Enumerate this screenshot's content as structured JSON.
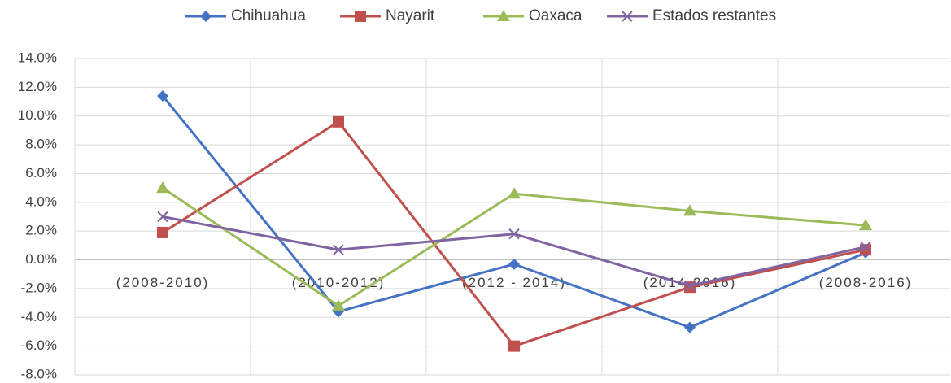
{
  "chart_data": {
    "type": "line",
    "categories": [
      "(2008-2010)",
      "(2010-2012)",
      "(2012 - 2014)",
      "(2014-2016)",
      "(2008-2016)"
    ],
    "series": [
      {
        "name": "Chihuahua",
        "color": "#4472c4",
        "marker": "diamond",
        "values": [
          11.4,
          -3.6,
          -0.3,
          -4.7,
          0.5
        ]
      },
      {
        "name": "Nayarit",
        "color": "#c0504d",
        "marker": "square",
        "values": [
          1.9,
          9.6,
          -6.0,
          -1.9,
          0.7
        ]
      },
      {
        "name": "Oaxaca",
        "color": "#9bbb59",
        "marker": "triangle",
        "values": [
          5.0,
          -3.2,
          4.6,
          3.4,
          2.4
        ]
      },
      {
        "name": "Estados restantes",
        "color": "#8064a2",
        "marker": "x",
        "values": [
          3.0,
          0.7,
          1.8,
          -1.8,
          0.9
        ]
      }
    ],
    "ylim": [
      -8,
      14
    ],
    "yticks": [
      {
        "value": -8,
        "label": "-8.0%"
      },
      {
        "value": -6,
        "label": "-6.0%"
      },
      {
        "value": -4,
        "label": "-4.0%"
      },
      {
        "value": -2,
        "label": "-2.0%"
      },
      {
        "value": 0,
        "label": "0.0%"
      },
      {
        "value": 2,
        "label": "2.0%"
      },
      {
        "value": 4,
        "label": "4.0%"
      },
      {
        "value": 6,
        "label": "6.0%"
      },
      {
        "value": 8,
        "label": "8.0%"
      },
      {
        "value": 10,
        "label": "10.0%"
      },
      {
        "value": 12,
        "label": "12.0%"
      },
      {
        "value": 14,
        "label": "14.0%"
      }
    ],
    "grid": true,
    "legend": "top"
  }
}
